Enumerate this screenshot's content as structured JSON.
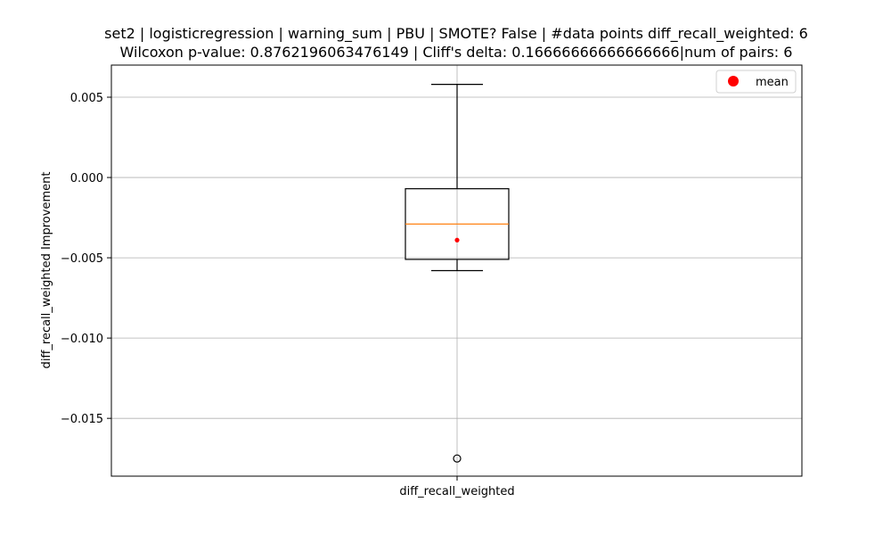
{
  "chart_data": {
    "type": "box",
    "title_line1": "set2 | logisticregression | warning_sum | PBU | SMOTE? False | #data points diff_recall_weighted: 6",
    "title_line2": "Wilcoxon p-value: 0.8762196063476149 | Cliff's delta: 0.16666666666666666|num of pairs: 6",
    "xlabel": "",
    "ylabel": "diff_recall_weighted Improvement",
    "categories": [
      "diff_recall_weighted"
    ],
    "ylim": [
      -0.0186,
      0.007
    ],
    "yticks": [
      0.005,
      0.0,
      -0.005,
      -0.01,
      -0.015
    ],
    "ytick_labels": [
      "0.005",
      "0.000",
      "−0.005",
      "−0.010",
      "−0.015"
    ],
    "grid": true,
    "legend": {
      "position": "top-right",
      "entries": [
        {
          "label": "mean",
          "color": "#ff0000"
        }
      ]
    },
    "box": {
      "whisker_low": -0.0058,
      "q1": -0.0051,
      "median": -0.0029,
      "q3": -0.0007,
      "whisker_high": 0.0058,
      "mean": -0.0039,
      "outliers": [
        -0.0175
      ]
    },
    "colors": {
      "box": "#000000",
      "median": "#ff7f0e",
      "mean": "#ff0000",
      "grid": "#b0b0b0"
    }
  }
}
